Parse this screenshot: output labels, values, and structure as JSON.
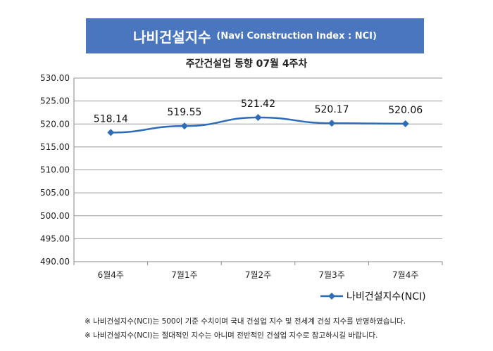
{
  "header": {
    "title": "나비건설지수",
    "title_sub": "(Navi Construction Index : NCI)"
  },
  "chart_data": {
    "type": "line",
    "title": "주간건설업 동향 07월 4주차",
    "categories": [
      "6월4주",
      "7월1주",
      "7월2주",
      "7월3주",
      "7월4주"
    ],
    "series": [
      {
        "name": "나비건설지수(NCI)",
        "values": [
          518.14,
          519.55,
          521.42,
          520.17,
          520.06
        ],
        "color": "#2e6cb8"
      }
    ],
    "data_labels": [
      "518.14",
      "519.55",
      "521.42",
      "520.17",
      "520.06"
    ],
    "ylim": [
      490,
      530
    ],
    "yticks": [
      "490.00",
      "495.00",
      "500.00",
      "505.00",
      "510.00",
      "515.00",
      "520.00",
      "525.00",
      "530.00"
    ],
    "grid": true,
    "legend": "bottom-right"
  },
  "notes": [
    "※ 나비건설지수(NCI)는 500이 기준 수치이며 국내 건설업 지수 및 전세계 건설 지수를 반영하였습니다.",
    "※ 나비건설지수(NCI)는 절대적인 지수는 아니며 전반적인 건설업 지수로 참고하시길 바랍니다."
  ]
}
